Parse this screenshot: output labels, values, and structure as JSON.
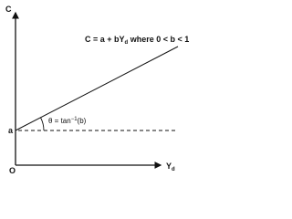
{
  "diagram": {
    "y_axis_label": "C",
    "x_axis_label": {
      "main": "Y",
      "sub": "d"
    },
    "origin_label": "O",
    "intercept_label": "a",
    "angle_label": {
      "main": "θ = tan",
      "sup": "−1",
      "rest": "(b)"
    },
    "equation": {
      "before": "C = a + bY",
      "sub": "d",
      "after": " where 0 < b < 1"
    }
  }
}
